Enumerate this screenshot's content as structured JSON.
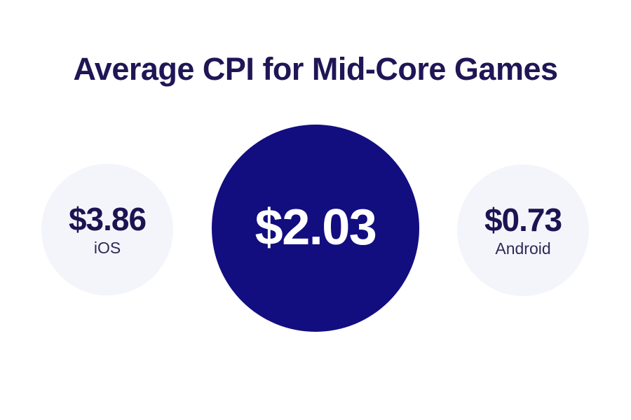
{
  "title": "Average CPI for Mid-Core Games",
  "colors": {
    "background": "#FFFFFF",
    "title": "#1F1656",
    "primary_bubble_fill": "#120E80",
    "primary_bubble_text": "#FFFFFF",
    "secondary_bubble_fill": "#F4F5FB",
    "secondary_value_text": "#1C1452",
    "secondary_label_text": "#2E2A56"
  },
  "chart_data": {
    "type": "bubble",
    "title": "Average CPI for Mid-Core Games",
    "legend_position": "none",
    "grid": false,
    "bubbles": [
      {
        "label": "iOS",
        "value": 3.86,
        "value_text": "$3.86",
        "emphasis": false
      },
      {
        "label": "",
        "value": 2.03,
        "value_text": "$2.03",
        "emphasis": true
      },
      {
        "label": "Android",
        "value": 0.73,
        "value_text": "$0.73",
        "emphasis": false
      }
    ]
  }
}
